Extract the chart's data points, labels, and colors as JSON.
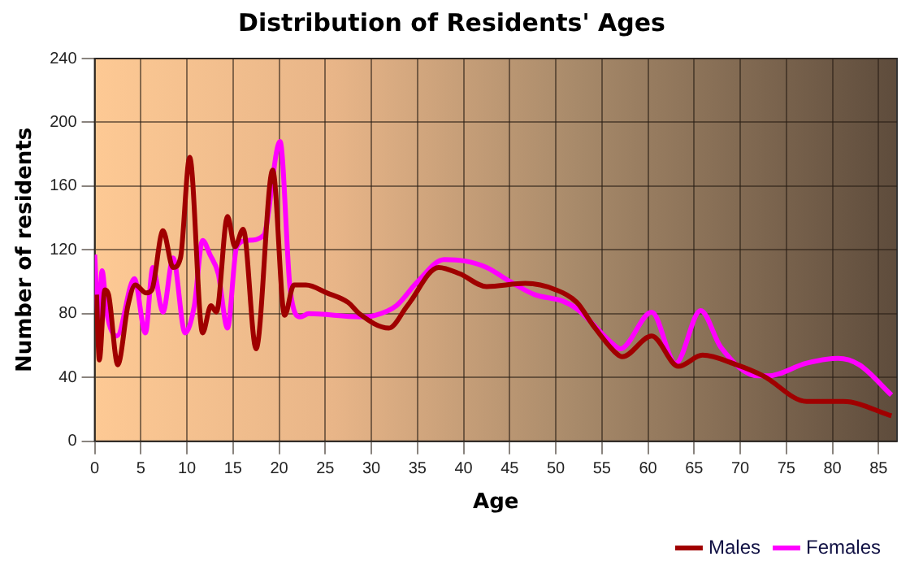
{
  "chart_data": {
    "type": "line",
    "title": "Distribution of Residents' Ages",
    "xlabel": "Age",
    "ylabel": "Number of residents",
    "xlim": [
      0,
      87
    ],
    "xticks": [
      0,
      5,
      10,
      15,
      20,
      25,
      30,
      35,
      40,
      45,
      50,
      55,
      60,
      65,
      70,
      75,
      80,
      85
    ],
    "ylim": [
      0,
      240
    ],
    "yticks": [
      0,
      40,
      80,
      120,
      160,
      200,
      240
    ],
    "grid": true,
    "legend": "bottom right",
    "series": [
      {
        "name": "Males",
        "color": "#a00000",
        "x": [
          0.2,
          0.5,
          1.1,
          1.5,
          2.5,
          3.6,
          4.4,
          5.6,
          6.2,
          7.4,
          8.5,
          9.3,
          10.3,
          11.7,
          12.6,
          13.2,
          14.4,
          15.2,
          16.1,
          17.5,
          19.3,
          20.6,
          21.6,
          22.9,
          25.2,
          27.5,
          28.7,
          31.9,
          33.9,
          37.3,
          39.6,
          42.5,
          46.7,
          50,
          52.3,
          54,
          56.4,
          57.2,
          60.4,
          63.3,
          65.9,
          69.6,
          72.5,
          77.2,
          81.2,
          86.4
        ],
        "values": [
          92,
          51,
          95,
          92,
          48,
          85,
          98,
          93,
          95,
          132,
          109,
          115,
          178,
          68,
          85,
          81,
          141,
          122,
          133,
          58,
          170,
          79,
          98,
          98,
          93,
          87,
          80,
          71,
          85,
          109,
          105,
          97,
          99,
          95,
          87,
          73,
          56,
          53,
          66,
          47,
          54,
          48,
          41,
          25,
          25,
          16
        ]
      },
      {
        "name": "Females",
        "color": "#ff00ff",
        "x": [
          0,
          0.4,
          0.8,
          1.3,
          2.4,
          4.3,
          5.5,
          6.3,
          7.4,
          8.5,
          9.8,
          10.8,
          11.7,
          12.5,
          13.4,
          14.4,
          15.4,
          16.6,
          18.3,
          20.1,
          21.2,
          22.3,
          23.2,
          28.7,
          30.4,
          32.7,
          35,
          37.9,
          40.2,
          42.5,
          45.1,
          47.7,
          50.7,
          52.3,
          56.4,
          57,
          60.4,
          63,
          65.7,
          67.9,
          71.9,
          73,
          77.2,
          80.6,
          82.9,
          86.4
        ],
        "values": [
          117,
          76,
          107,
          81,
          66,
          102,
          68,
          109,
          81,
          115,
          68,
          85,
          126,
          117,
          105,
          71,
          122,
          126,
          129,
          188,
          95,
          78,
          80,
          78,
          79,
          85,
          100,
          114,
          113,
          109,
          100,
          92,
          88,
          83,
          60,
          58,
          81,
          49,
          82,
          59,
          41,
          41,
          49,
          52,
          48,
          29
        ]
      }
    ]
  }
}
